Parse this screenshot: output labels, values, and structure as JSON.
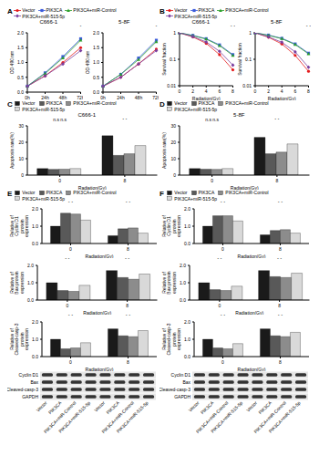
{
  "chart_data": [
    {
      "panel": "A",
      "type": "line",
      "title": "C666-1",
      "categories": [
        "0h",
        "24h",
        "48h",
        "72h"
      ],
      "y_label": "OD 490 nm",
      "ylim": [
        0,
        2
      ],
      "yticks": [
        {
          "value": 0,
          "label": "0.0"
        },
        0.5,
        {
          "value": 1,
          "label": "1.0"
        },
        1.5,
        {
          "value": 2,
          "label": "2.0"
        }
      ],
      "series": [
        {
          "name": "Vector",
          "color": "#e41a1c",
          "marker": "circle",
          "values": [
            0.2,
            0.55,
            1.0,
            1.5
          ]
        },
        {
          "name": "PIK3CA",
          "color": "#3b5bdb",
          "marker": "square",
          "values": [
            0.2,
            0.65,
            1.2,
            1.8
          ]
        },
        {
          "name": "PIK3CA+miR-Control",
          "color": "#2ca02c",
          "marker": "triangle",
          "values": [
            0.2,
            0.63,
            1.15,
            1.75
          ]
        },
        {
          "name": "PIK3CA+miR-515-5p",
          "color": "#7b3fa0",
          "marker": "diamond",
          "values": [
            0.2,
            0.55,
            0.95,
            1.4
          ]
        }
      ],
      "annotations": [
        {
          "category": "72h",
          "text": "*"
        }
      ]
    },
    {
      "type": "line",
      "title": "5-8F",
      "categories": [
        "0h",
        "24h",
        "48h",
        "72h"
      ],
      "y_label": "OD 490 nm",
      "ylim": [
        0,
        2
      ],
      "yticks": [
        {
          "value": 0,
          "label": "0.0"
        },
        0.5,
        {
          "value": 1,
          "label": "1.0"
        },
        1.5,
        {
          "value": 2,
          "label": "2.0"
        }
      ],
      "series": [
        {
          "name": "Vector",
          "color": "#e41a1c",
          "marker": "circle",
          "values": [
            0.2,
            0.5,
            0.95,
            1.45
          ]
        },
        {
          "name": "PIK3CA",
          "color": "#3b5bdb",
          "marker": "square",
          "values": [
            0.2,
            0.6,
            1.15,
            1.75
          ]
        },
        {
          "name": "PIK3CA+miR-Control",
          "color": "#2ca02c",
          "marker": "triangle",
          "values": [
            0.2,
            0.6,
            1.1,
            1.7
          ]
        },
        {
          "name": "PIK3CA+miR-515-5p",
          "color": "#7b3fa0",
          "marker": "diamond",
          "values": [
            0.2,
            0.5,
            0.95,
            1.4
          ]
        }
      ],
      "annotations": [
        {
          "category": "72h",
          "text": "*"
        }
      ]
    },
    {
      "panel": "B",
      "type": "line",
      "title": "C666-1",
      "categories": [
        "0",
        "2",
        "4",
        "6",
        "8"
      ],
      "x_label": "Radiation(Gy)",
      "y_label": "Survival fraction",
      "log": "y",
      "ylim": [
        0.01,
        1
      ],
      "yticks": [
        0.01,
        0.1,
        1
      ],
      "series": [
        {
          "name": "Vector",
          "color": "#e41a1c",
          "marker": "circle",
          "values": [
            1,
            0.7,
            0.4,
            0.15,
            0.04
          ]
        },
        {
          "name": "PIK3CA",
          "color": "#3b5bdb",
          "marker": "square",
          "values": [
            1,
            0.8,
            0.6,
            0.35,
            0.15
          ]
        },
        {
          "name": "PIK3CA+miR-Control",
          "color": "#2ca02c",
          "marker": "triangle",
          "values": [
            1,
            0.78,
            0.58,
            0.33,
            0.14
          ]
        },
        {
          "name": "PIK3CA+miR-515-5p",
          "color": "#7b3fa0",
          "marker": "diamond",
          "values": [
            1,
            0.72,
            0.45,
            0.2,
            0.06
          ]
        }
      ],
      "annotations": [
        {
          "category": "8",
          "text": "* *"
        }
      ]
    },
    {
      "type": "line",
      "title": "5-8F",
      "categories": [
        "0",
        "2",
        "4",
        "6",
        "8"
      ],
      "x_label": "Radiation(Gy)",
      "y_label": "Survival fraction",
      "log": "y",
      "ylim": [
        0.01,
        1
      ],
      "yticks": [
        0.01,
        0.1,
        1
      ],
      "series": [
        {
          "name": "Vector",
          "color": "#e41a1c",
          "marker": "circle",
          "values": [
            1,
            0.68,
            0.38,
            0.14,
            0.035
          ]
        },
        {
          "name": "PIK3CA",
          "color": "#3b5bdb",
          "marker": "square",
          "values": [
            1,
            0.82,
            0.62,
            0.38,
            0.17
          ]
        },
        {
          "name": "PIK3CA+miR-Control",
          "color": "#2ca02c",
          "marker": "triangle",
          "values": [
            1,
            0.8,
            0.6,
            0.36,
            0.16
          ]
        },
        {
          "name": "PIK3CA+miR-515-5p",
          "color": "#7b3fa0",
          "marker": "diamond",
          "values": [
            1,
            0.7,
            0.44,
            0.19,
            0.05
          ]
        }
      ],
      "annotations": [
        {
          "category": "8",
          "text": "* *"
        }
      ]
    },
    {
      "panel": "C",
      "type": "bar",
      "title": "C666-1",
      "categories": [
        "0",
        "8"
      ],
      "x_label": "Radiation(Gy)",
      "y_label": "Apoptosis rate(%)",
      "ylim": [
        0,
        30
      ],
      "yticks": [
        0,
        10,
        20,
        30
      ],
      "series": [
        {
          "name": "Vector",
          "color": "#1a1a1a",
          "values": [
            4,
            24
          ]
        },
        {
          "name": "PIK3CA",
          "color": "#595959",
          "values": [
            3.5,
            12
          ]
        },
        {
          "name": "PIK3CA+miR-Control",
          "color": "#8c8c8c",
          "values": [
            3.6,
            13
          ]
        },
        {
          "name": "PIK3CA+miR-515-5p",
          "color": "#d9d9d9",
          "values": [
            4,
            18
          ]
        }
      ],
      "annotations": [
        {
          "category": "0",
          "text": "n.s n.s"
        },
        {
          "category": "8",
          "text": "* *"
        }
      ]
    },
    {
      "panel": "D",
      "type": "bar",
      "title": "5-8F",
      "categories": [
        "0",
        "8"
      ],
      "x_label": "Radiation(Gy)",
      "y_label": "Apoptosis rate(%)",
      "ylim": [
        0,
        30
      ],
      "yticks": [
        0,
        10,
        20,
        30
      ],
      "series": [
        {
          "name": "Vector",
          "color": "#1a1a1a",
          "values": [
            4,
            23
          ]
        },
        {
          "name": "PIK3CA",
          "color": "#595959",
          "values": [
            3.6,
            13
          ]
        },
        {
          "name": "PIK3CA+miR-Control",
          "color": "#8c8c8c",
          "values": [
            3.5,
            14
          ]
        },
        {
          "name": "PIK3CA+miR-515-5p",
          "color": "#d9d9d9",
          "values": [
            4,
            19
          ]
        }
      ],
      "annotations": [
        {
          "category": "0",
          "text": "n.s n.s"
        },
        {
          "category": "8",
          "text": "* *"
        }
      ]
    },
    {
      "panel": "E",
      "type": "bar",
      "categories": [
        "0",
        "8"
      ],
      "x_label": "Radiation(Gy)",
      "y_label": "Relative of Cyclin D1 protein expression",
      "ylim": [
        0,
        2
      ],
      "yticks": [
        {
          "value": 0,
          "label": "0.0"
        },
        0.5,
        {
          "value": 1,
          "label": "1.0"
        },
        1.5,
        {
          "value": 2,
          "label": "2.0"
        }
      ],
      "series": [
        {
          "name": "Vector",
          "color": "#1a1a1a",
          "values": [
            1.0,
            0.45
          ]
        },
        {
          "name": "PIK3CA",
          "color": "#595959",
          "values": [
            1.75,
            0.85
          ]
        },
        {
          "name": "PIK3CA+miR-Control",
          "color": "#8c8c8c",
          "values": [
            1.7,
            0.9
          ]
        },
        {
          "name": "PIK3CA+miR-515-5p",
          "color": "#d9d9d9",
          "values": [
            1.35,
            0.6
          ]
        }
      ],
      "annotations": [
        {
          "category": "0",
          "text": "* *"
        },
        {
          "category": "8",
          "text": "* *"
        }
      ]
    },
    {
      "type": "bar",
      "categories": [
        "0",
        "8"
      ],
      "x_label": "Radiation(Gy)",
      "y_label": "Relative of Bax protein expression",
      "ylim": [
        0,
        2
      ],
      "yticks": [
        {
          "value": 0,
          "label": "0.0"
        },
        0.5,
        {
          "value": 1,
          "label": "1.0"
        },
        1.5,
        {
          "value": 2,
          "label": "2.0"
        }
      ],
      "series": [
        {
          "name": "Vector",
          "color": "#1a1a1a",
          "values": [
            1.0,
            1.7
          ]
        },
        {
          "name": "PIK3CA",
          "color": "#595959",
          "values": [
            0.55,
            1.3
          ]
        },
        {
          "name": "PIK3CA+miR-Control",
          "color": "#8c8c8c",
          "values": [
            0.5,
            1.2
          ]
        },
        {
          "name": "PIK3CA+miR-515-5p",
          "color": "#d9d9d9",
          "values": [
            0.85,
            1.5
          ]
        }
      ],
      "annotations": [
        {
          "category": "0",
          "text": "* *"
        },
        {
          "category": "8",
          "text": "* *"
        }
      ]
    },
    {
      "type": "bar",
      "categories": [
        "0",
        "8"
      ],
      "x_label": "Radiation(Gy)",
      "y_label": "Relative of Cleaved-casp-3 protein expression",
      "ylim": [
        0,
        2
      ],
      "yticks": [
        {
          "value": 0,
          "label": "0.0"
        },
        0.5,
        {
          "value": 1,
          "label": "1.0"
        },
        1.5,
        {
          "value": 2,
          "label": "2.0"
        }
      ],
      "series": [
        {
          "name": "Vector",
          "color": "#1a1a1a",
          "values": [
            1.0,
            1.6
          ]
        },
        {
          "name": "PIK3CA",
          "color": "#595959",
          "values": [
            0.45,
            1.2
          ]
        },
        {
          "name": "PIK3CA+miR-Control",
          "color": "#8c8c8c",
          "values": [
            0.5,
            1.15
          ]
        },
        {
          "name": "PIK3CA+miR-515-5p",
          "color": "#d9d9d9",
          "values": [
            0.8,
            1.5
          ]
        }
      ],
      "annotations": [
        {
          "category": "0",
          "text": "* *"
        },
        {
          "category": "8",
          "text": "* *"
        }
      ]
    },
    {
      "panel": "F",
      "type": "bar",
      "categories": [
        "0",
        "8"
      ],
      "x_label": "Radiation(Gy)",
      "y_label": "Relative of Cyclin D1 protein expression",
      "ylim": [
        0,
        2
      ],
      "yticks": [
        {
          "value": 0,
          "label": "0.0"
        },
        0.5,
        {
          "value": 1,
          "label": "1.0"
        },
        1.5,
        {
          "value": 2,
          "label": "2.0"
        }
      ],
      "series": [
        {
          "name": "Vector",
          "color": "#1a1a1a",
          "values": [
            1.0,
            0.5
          ]
        },
        {
          "name": "PIK3CA",
          "color": "#595959",
          "values": [
            1.6,
            0.75
          ]
        },
        {
          "name": "PIK3CA+miR-Control",
          "color": "#8c8c8c",
          "values": [
            1.6,
            0.8
          ]
        },
        {
          "name": "PIK3CA+miR-515-5p",
          "color": "#d9d9d9",
          "values": [
            1.3,
            0.6
          ]
        }
      ],
      "annotations": [
        {
          "category": "0",
          "text": "* *"
        },
        {
          "category": "8",
          "text": "* *"
        }
      ]
    },
    {
      "type": "bar",
      "categories": [
        "0",
        "8"
      ],
      "x_label": "Radiation(Gy)",
      "y_label": "Relative of Bax protein expression",
      "ylim": [
        0,
        2
      ],
      "yticks": [
        {
          "value": 0,
          "label": "0.0"
        },
        0.5,
        {
          "value": 1,
          "label": "1.0"
        },
        1.5,
        {
          "value": 2,
          "label": "2.0"
        }
      ],
      "series": [
        {
          "name": "Vector",
          "color": "#1a1a1a",
          "values": [
            1.0,
            1.7
          ]
        },
        {
          "name": "PIK3CA",
          "color": "#595959",
          "values": [
            0.6,
            1.35
          ]
        },
        {
          "name": "PIK3CA+miR-Control",
          "color": "#8c8c8c",
          "values": [
            0.55,
            1.3
          ]
        },
        {
          "name": "PIK3CA+miR-515-5p",
          "color": "#d9d9d9",
          "values": [
            0.8,
            1.55
          ]
        }
      ],
      "annotations": [
        {
          "category": "0",
          "text": "* *"
        },
        {
          "category": "8",
          "text": "* *"
        }
      ]
    },
    {
      "type": "bar",
      "categories": [
        "0",
        "8"
      ],
      "x_label": "Radiation(Gy)",
      "y_label": "Relative of Cleaved-casp-3 protein expression",
      "ylim": [
        0,
        2
      ],
      "yticks": [
        {
          "value": 0,
          "label": "0.0"
        },
        0.5,
        {
          "value": 1,
          "label": "1.0"
        },
        1.5,
        {
          "value": 2,
          "label": "2.0"
        }
      ],
      "series": [
        {
          "name": "Vector",
          "color": "#1a1a1a",
          "values": [
            1.0,
            1.6
          ]
        },
        {
          "name": "PIK3CA",
          "color": "#595959",
          "values": [
            0.5,
            1.2
          ]
        },
        {
          "name": "PIK3CA+miR-Control",
          "color": "#8c8c8c",
          "values": [
            0.45,
            1.15
          ]
        },
        {
          "name": "PIK3CA+miR-515-5p",
          "color": "#d9d9d9",
          "values": [
            0.75,
            1.4
          ]
        }
      ],
      "annotations": [
        {
          "category": "0",
          "text": "* *"
        },
        {
          "category": "8",
          "text": "* *"
        }
      ]
    }
  ],
  "blots": [
    {
      "rows": [
        "Cyclin D1",
        "Bax",
        "Cleaved-casp-3",
        "GAPDH"
      ],
      "lanes": [
        "Vector",
        "PIK3CA",
        "PIK3CA+miR-Control",
        "PIK3CA+miR-515-5p",
        "Vector",
        "PIK3CA",
        "PIK3CA+miR-Control",
        "PIK3CA+miR-515-5p"
      ]
    },
    {
      "rows": [
        "Cyclin D1",
        "Bax",
        "Cleaved-casp-3",
        "GAPDH"
      ],
      "lanes": [
        "Vector",
        "PIK3CA",
        "PIK3CA+miR-Control",
        "PIK3CA+miR-515-5p",
        "Vector",
        "PIK3CA",
        "PIK3CA+miR-Control",
        "PIK3CA+miR-515-5p"
      ]
    }
  ]
}
